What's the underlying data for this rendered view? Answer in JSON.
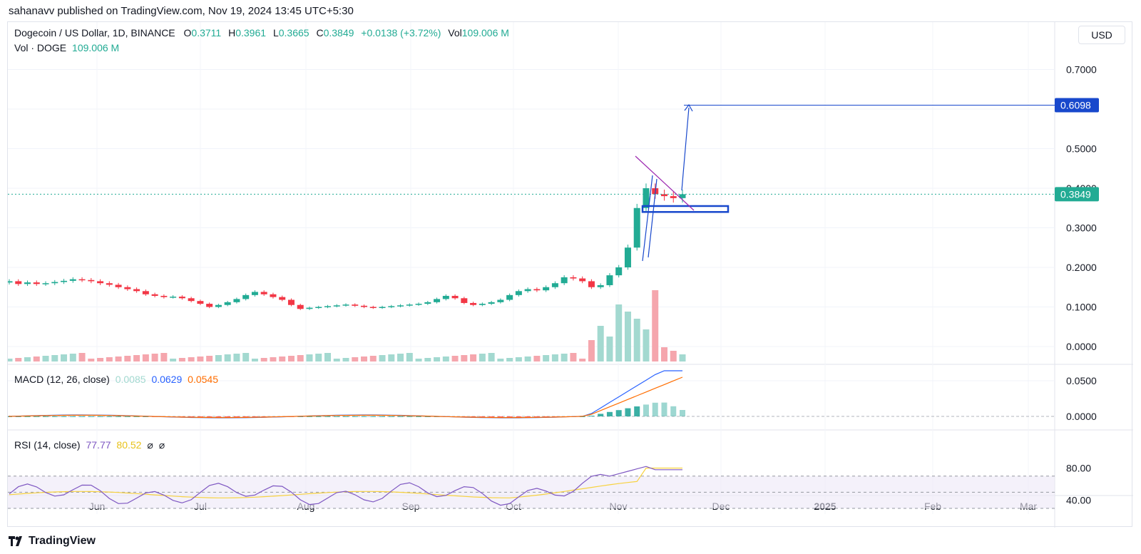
{
  "header": {
    "publish_line": "sahanavv published on TradingView.com, Nov 19, 2024 13:45 UTC+5:30"
  },
  "legend": {
    "symbol": "Dogecoin / US Dollar, 1D, BINANCE",
    "o_label": "O",
    "o_value": "0.3711",
    "h_label": "H",
    "h_value": "0.3961",
    "l_label": "L",
    "l_value": "0.3665",
    "c_label": "C",
    "c_value": "0.3849",
    "change": "+0.0138 (+3.72%)",
    "vol_label": "Vol",
    "vol_value": "109.006 M",
    "vol_line_label": "Vol · DOGE",
    "vol_line_value": "109.006 M"
  },
  "macd": {
    "label": "MACD (12, 26, close)",
    "hist": "0.0085",
    "macd": "0.0629",
    "signal": "0.0545"
  },
  "rsi": {
    "label": "RSI (14, close)",
    "rsi": "77.77",
    "ma": "80.52",
    "x1": "⌀",
    "x2": "⌀"
  },
  "currency": "USD",
  "footer": {
    "brand": "TradingView"
  },
  "colors": {
    "up": "#22ab94",
    "down": "#f23645",
    "target": "#1848cc",
    "macd": "#2962ff",
    "signal": "#ff6d00",
    "rsi": "#7e57c2",
    "rsi_ma": "#f7d23f",
    "trend": "#9c27b0"
  },
  "chart_data": [
    {
      "type": "candlestick",
      "title": "Dogecoin / US Dollar, 1D, BINANCE",
      "y_ticks": [
        "0.7000",
        "0.5000",
        "0.4000",
        "0.3000",
        "0.2000",
        "0.1000",
        "0.0000"
      ],
      "x_ticks": [
        "Jun",
        "Jul",
        "Aug",
        "Sep",
        "Oct",
        "Nov",
        "Dec",
        "2025",
        "Feb",
        "Mar"
      ],
      "ylim": [
        0,
        0.78
      ],
      "last_price": "0.3849",
      "target_price": "0.6098",
      "close_series": [
        0.165,
        0.158,
        0.162,
        0.158,
        0.16,
        0.163,
        0.166,
        0.17,
        0.168,
        0.165,
        0.16,
        0.156,
        0.15,
        0.145,
        0.14,
        0.132,
        0.128,
        0.125,
        0.126,
        0.122,
        0.115,
        0.108,
        0.1,
        0.105,
        0.112,
        0.12,
        0.13,
        0.138,
        0.132,
        0.125,
        0.118,
        0.105,
        0.095,
        0.098,
        0.1,
        0.102,
        0.104,
        0.106,
        0.103,
        0.1,
        0.098,
        0.1,
        0.102,
        0.104,
        0.106,
        0.108,
        0.112,
        0.12,
        0.128,
        0.122,
        0.11,
        0.105,
        0.108,
        0.112,
        0.118,
        0.13,
        0.14,
        0.145,
        0.142,
        0.15,
        0.16,
        0.175,
        0.172,
        0.165,
        0.15,
        0.155,
        0.18,
        0.2,
        0.25,
        0.35,
        0.4,
        0.385,
        0.38,
        0.375,
        0.3849
      ],
      "zone_price": [
        0.34,
        0.355
      ],
      "volume_label": "Vol · DOGE 109.006 M"
    },
    {
      "type": "line",
      "title": "MACD (12, 26, close)",
      "y_ticks": [
        "0.0500",
        "0.0000"
      ],
      "series": [
        {
          "name": "MACD",
          "last": 0.0629
        },
        {
          "name": "Signal",
          "last": 0.0545
        },
        {
          "name": "Histogram",
          "last": 0.0085
        }
      ]
    },
    {
      "type": "line",
      "title": "RSI (14, close)",
      "y_ticks": [
        "80.00",
        "40.00"
      ],
      "bands": [
        30,
        50,
        70
      ],
      "series": [
        {
          "name": "RSI",
          "last": 77.77
        },
        {
          "name": "RSI MA",
          "last": 80.52
        }
      ]
    }
  ]
}
